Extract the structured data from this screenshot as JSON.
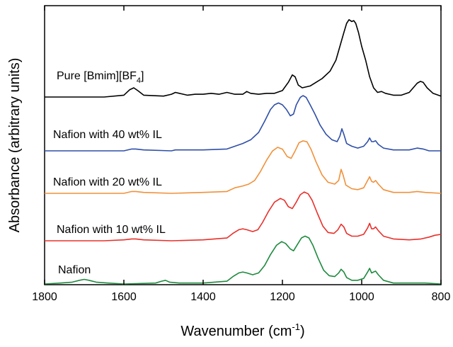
{
  "chart_data": {
    "type": "line",
    "title": "",
    "xlabel": "Wavenumber (cm⁻¹)",
    "ylabel": "Absorbance (arbitrary units)",
    "xlim": [
      1800,
      800
    ],
    "x_reversed": true,
    "x_ticks": [
      1800,
      1600,
      1400,
      1200,
      1000,
      800
    ],
    "y_ticks": [],
    "grid": false,
    "series": [
      {
        "name": "Pure [Bmim][BF₄]",
        "color": "#000000",
        "points": [
          [
            1800,
            0.0
          ],
          [
            1650,
            0.0
          ],
          [
            1600,
            0.02
          ],
          [
            1585,
            0.08
          ],
          [
            1575,
            0.1
          ],
          [
            1565,
            0.07
          ],
          [
            1550,
            0.02
          ],
          [
            1500,
            0.01
          ],
          [
            1480,
            0.03
          ],
          [
            1470,
            0.05
          ],
          [
            1460,
            0.04
          ],
          [
            1440,
            0.02
          ],
          [
            1420,
            0.03
          ],
          [
            1400,
            0.03
          ],
          [
            1380,
            0.04
          ],
          [
            1360,
            0.03
          ],
          [
            1340,
            0.05
          ],
          [
            1320,
            0.03
          ],
          [
            1300,
            0.03
          ],
          [
            1290,
            0.06
          ],
          [
            1280,
            0.04
          ],
          [
            1260,
            0.03
          ],
          [
            1240,
            0.04
          ],
          [
            1220,
            0.04
          ],
          [
            1200,
            0.07
          ],
          [
            1185,
            0.16
          ],
          [
            1175,
            0.24
          ],
          [
            1168,
            0.22
          ],
          [
            1160,
            0.13
          ],
          [
            1150,
            0.1
          ],
          [
            1130,
            0.12
          ],
          [
            1115,
            0.16
          ],
          [
            1100,
            0.2
          ],
          [
            1080,
            0.28
          ],
          [
            1065,
            0.4
          ],
          [
            1055,
            0.55
          ],
          [
            1045,
            0.7
          ],
          [
            1038,
            0.8
          ],
          [
            1032,
            0.84
          ],
          [
            1025,
            0.82
          ],
          [
            1020,
            0.83
          ],
          [
            1015,
            0.8
          ],
          [
            1008,
            0.7
          ],
          [
            1000,
            0.55
          ],
          [
            990,
            0.4
          ],
          [
            980,
            0.22
          ],
          [
            970,
            0.1
          ],
          [
            960,
            0.05
          ],
          [
            950,
            0.06
          ],
          [
            940,
            0.04
          ],
          [
            920,
            0.02
          ],
          [
            900,
            0.02
          ],
          [
            880,
            0.05
          ],
          [
            870,
            0.1
          ],
          [
            860,
            0.15
          ],
          [
            852,
            0.17
          ],
          [
            845,
            0.16
          ],
          [
            835,
            0.1
          ],
          [
            820,
            0.04
          ],
          [
            800,
            0.01
          ]
        ]
      },
      {
        "name": "Nafion with 40 wt% IL",
        "color": "#2f4fa8",
        "points": [
          [
            1800,
            0.0
          ],
          [
            1600,
            0.0
          ],
          [
            1580,
            0.02
          ],
          [
            1570,
            0.02
          ],
          [
            1550,
            0.01
          ],
          [
            1480,
            0.0
          ],
          [
            1470,
            0.01
          ],
          [
            1400,
            0.01
          ],
          [
            1340,
            0.02
          ],
          [
            1320,
            0.05
          ],
          [
            1300,
            0.08
          ],
          [
            1280,
            0.12
          ],
          [
            1260,
            0.2
          ],
          [
            1245,
            0.32
          ],
          [
            1230,
            0.45
          ],
          [
            1220,
            0.5
          ],
          [
            1210,
            0.52
          ],
          [
            1200,
            0.5
          ],
          [
            1190,
            0.45
          ],
          [
            1180,
            0.38
          ],
          [
            1172,
            0.4
          ],
          [
            1165,
            0.5
          ],
          [
            1155,
            0.58
          ],
          [
            1148,
            0.6
          ],
          [
            1140,
            0.58
          ],
          [
            1130,
            0.5
          ],
          [
            1118,
            0.4
          ],
          [
            1105,
            0.28
          ],
          [
            1090,
            0.18
          ],
          [
            1075,
            0.12
          ],
          [
            1062,
            0.1
          ],
          [
            1055,
            0.16
          ],
          [
            1050,
            0.24
          ],
          [
            1045,
            0.18
          ],
          [
            1038,
            0.08
          ],
          [
            1025,
            0.05
          ],
          [
            1010,
            0.03
          ],
          [
            995,
            0.05
          ],
          [
            985,
            0.1
          ],
          [
            980,
            0.14
          ],
          [
            975,
            0.1
          ],
          [
            970,
            0.1
          ],
          [
            965,
            0.11
          ],
          [
            958,
            0.07
          ],
          [
            945,
            0.03
          ],
          [
            920,
            0.01
          ],
          [
            880,
            0.01
          ],
          [
            860,
            0.03
          ],
          [
            845,
            0.02
          ],
          [
            830,
            0.0
          ],
          [
            800,
            0.0
          ]
        ]
      },
      {
        "name": "Nafion with 20 wt% IL",
        "color": "#f0913a",
        "points": [
          [
            1800,
            0.0
          ],
          [
            1600,
            0.0
          ],
          [
            1580,
            0.02
          ],
          [
            1570,
            0.02
          ],
          [
            1550,
            0.01
          ],
          [
            1480,
            0.0
          ],
          [
            1400,
            0.01
          ],
          [
            1340,
            0.02
          ],
          [
            1320,
            0.06
          ],
          [
            1300,
            0.08
          ],
          [
            1285,
            0.1
          ],
          [
            1270,
            0.14
          ],
          [
            1255,
            0.24
          ],
          [
            1240,
            0.36
          ],
          [
            1225,
            0.46
          ],
          [
            1212,
            0.5
          ],
          [
            1200,
            0.48
          ],
          [
            1188,
            0.4
          ],
          [
            1178,
            0.38
          ],
          [
            1168,
            0.46
          ],
          [
            1158,
            0.55
          ],
          [
            1148,
            0.57
          ],
          [
            1138,
            0.56
          ],
          [
            1128,
            0.48
          ],
          [
            1115,
            0.34
          ],
          [
            1100,
            0.2
          ],
          [
            1085,
            0.12
          ],
          [
            1068,
            0.1
          ],
          [
            1058,
            0.14
          ],
          [
            1052,
            0.26
          ],
          [
            1047,
            0.2
          ],
          [
            1040,
            0.09
          ],
          [
            1025,
            0.05
          ],
          [
            1010,
            0.04
          ],
          [
            995,
            0.06
          ],
          [
            985,
            0.14
          ],
          [
            980,
            0.18
          ],
          [
            975,
            0.13
          ],
          [
            970,
            0.12
          ],
          [
            965,
            0.14
          ],
          [
            958,
            0.1
          ],
          [
            945,
            0.04
          ],
          [
            920,
            0.01
          ],
          [
            880,
            0.01
          ],
          [
            860,
            0.02
          ],
          [
            840,
            0.01
          ],
          [
            800,
            0.0
          ]
        ]
      },
      {
        "name": "Nafion with 10 wt% IL",
        "color": "#e8302b",
        "points": [
          [
            1800,
            0.0
          ],
          [
            1650,
            0.0
          ],
          [
            1600,
            0.01
          ],
          [
            1580,
            0.02
          ],
          [
            1570,
            0.02
          ],
          [
            1550,
            0.01
          ],
          [
            1480,
            0.0
          ],
          [
            1400,
            0.01
          ],
          [
            1340,
            0.03
          ],
          [
            1325,
            0.08
          ],
          [
            1310,
            0.12
          ],
          [
            1300,
            0.13
          ],
          [
            1290,
            0.12
          ],
          [
            1275,
            0.1
          ],
          [
            1262,
            0.12
          ],
          [
            1250,
            0.2
          ],
          [
            1235,
            0.32
          ],
          [
            1220,
            0.42
          ],
          [
            1205,
            0.46
          ],
          [
            1195,
            0.44
          ],
          [
            1185,
            0.37
          ],
          [
            1175,
            0.35
          ],
          [
            1165,
            0.42
          ],
          [
            1155,
            0.5
          ],
          [
            1145,
            0.53
          ],
          [
            1135,
            0.51
          ],
          [
            1125,
            0.44
          ],
          [
            1112,
            0.3
          ],
          [
            1098,
            0.16
          ],
          [
            1085,
            0.09
          ],
          [
            1070,
            0.08
          ],
          [
            1060,
            0.12
          ],
          [
            1052,
            0.18
          ],
          [
            1045,
            0.15
          ],
          [
            1038,
            0.08
          ],
          [
            1025,
            0.05
          ],
          [
            1010,
            0.05
          ],
          [
            995,
            0.07
          ],
          [
            985,
            0.14
          ],
          [
            980,
            0.19
          ],
          [
            975,
            0.13
          ],
          [
            970,
            0.13
          ],
          [
            965,
            0.15
          ],
          [
            958,
            0.11
          ],
          [
            945,
            0.05
          ],
          [
            920,
            0.02
          ],
          [
            880,
            0.01
          ],
          [
            850,
            0.02
          ],
          [
            830,
            0.04
          ],
          [
            815,
            0.06
          ],
          [
            800,
            0.07
          ]
        ]
      },
      {
        "name": "Nafion",
        "color": "#1e8a3e",
        "points": [
          [
            1800,
            0.0
          ],
          [
            1760,
            0.01
          ],
          [
            1730,
            0.02
          ],
          [
            1712,
            0.04
          ],
          [
            1700,
            0.05
          ],
          [
            1688,
            0.04
          ],
          [
            1670,
            0.02
          ],
          [
            1640,
            0.01
          ],
          [
            1600,
            0.0
          ],
          [
            1520,
            0.01
          ],
          [
            1505,
            0.03
          ],
          [
            1495,
            0.04
          ],
          [
            1485,
            0.02
          ],
          [
            1460,
            0.01
          ],
          [
            1400,
            0.01
          ],
          [
            1340,
            0.03
          ],
          [
            1325,
            0.08
          ],
          [
            1310,
            0.12
          ],
          [
            1300,
            0.13
          ],
          [
            1290,
            0.12
          ],
          [
            1275,
            0.1
          ],
          [
            1260,
            0.12
          ],
          [
            1245,
            0.2
          ],
          [
            1230,
            0.32
          ],
          [
            1215,
            0.42
          ],
          [
            1202,
            0.46
          ],
          [
            1192,
            0.44
          ],
          [
            1180,
            0.38
          ],
          [
            1172,
            0.36
          ],
          [
            1162,
            0.43
          ],
          [
            1152,
            0.5
          ],
          [
            1143,
            0.52
          ],
          [
            1133,
            0.5
          ],
          [
            1123,
            0.42
          ],
          [
            1110,
            0.28
          ],
          [
            1096,
            0.15
          ],
          [
            1082,
            0.09
          ],
          [
            1068,
            0.08
          ],
          [
            1058,
            0.12
          ],
          [
            1052,
            0.16
          ],
          [
            1045,
            0.13
          ],
          [
            1038,
            0.07
          ],
          [
            1025,
            0.04
          ],
          [
            1010,
            0.04
          ],
          [
            995,
            0.06
          ],
          [
            985,
            0.13
          ],
          [
            980,
            0.17
          ],
          [
            975,
            0.12
          ],
          [
            970,
            0.13
          ],
          [
            965,
            0.14
          ],
          [
            958,
            0.1
          ],
          [
            945,
            0.04
          ],
          [
            920,
            0.01
          ],
          [
            880,
            0.01
          ],
          [
            840,
            0.01
          ],
          [
            800,
            0.0
          ]
        ]
      }
    ],
    "series_labels": [
      {
        "parts": [
          {
            "t": "Pure [Bmim][BF"
          },
          {
            "t": "4",
            "sub": true
          },
          {
            "t": "]"
          }
        ]
      },
      {
        "parts": [
          {
            "t": "Nafion with 40 wt% IL"
          }
        ]
      },
      {
        "parts": [
          {
            "t": "Nafion with 20 wt% IL"
          }
        ]
      },
      {
        "parts": [
          {
            "t": "Nafion with 10 wt% IL"
          }
        ]
      },
      {
        "parts": [
          {
            "t": "Nafion"
          }
        ]
      }
    ]
  }
}
